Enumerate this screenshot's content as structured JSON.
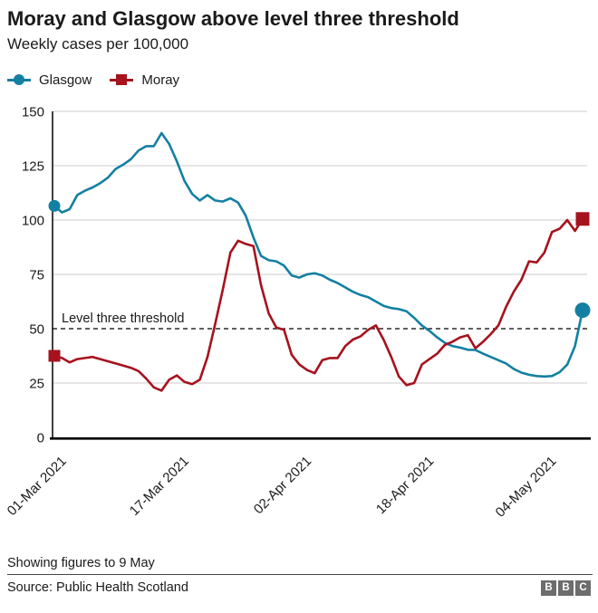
{
  "header": {
    "title": "Moray and Glasgow above level three threshold",
    "subtitle": "Weekly cases per 100,000"
  },
  "legend": {
    "items": [
      {
        "label": "Glasgow",
        "marker": "circle",
        "color": "#1380A1"
      },
      {
        "label": "Moray",
        "marker": "square",
        "color": "#A6121D"
      }
    ]
  },
  "chart_data": {
    "type": "line",
    "x_start_label": "01-Mar 2021",
    "x_end_note": "data shown to 9 May 2021, one point per day",
    "xticks": [
      {
        "index": 0,
        "label": "01-Mar 2021"
      },
      {
        "index": 16,
        "label": "17-Mar 2021"
      },
      {
        "index": 32,
        "label": "02-Apr 2021"
      },
      {
        "index": 48,
        "label": "18-Apr 2021"
      },
      {
        "index": 64,
        "label": "04-May 2021"
      }
    ],
    "yticks": [
      0,
      25,
      50,
      75,
      100,
      125,
      150
    ],
    "ylim": [
      0,
      150
    ],
    "grid": "horizontal",
    "legend_position": "top-left",
    "threshold": {
      "value": 50,
      "label": "Level three threshold"
    },
    "series": [
      {
        "name": "Glasgow",
        "color": "#1380A1",
        "marker": "circle",
        "values": [
          106.5,
          103.5,
          105,
          111.5,
          113.5,
          115,
          117,
          119.5,
          123.5,
          125.5,
          128,
          132,
          134,
          134,
          140,
          135,
          127,
          118,
          112,
          109,
          111.5,
          109,
          108.5,
          110,
          108,
          102,
          92,
          83.5,
          81.5,
          81,
          79,
          74.5,
          73.5,
          75,
          75.5,
          74.5,
          72.5,
          71,
          69,
          67,
          65.5,
          64.5,
          62.5,
          60.5,
          59.5,
          59,
          58,
          55,
          51.5,
          49,
          46,
          43.5,
          42,
          41.3,
          40.3,
          40.2,
          38.5,
          37,
          35.5,
          34,
          31.5,
          29.8,
          28.8,
          28.2,
          28,
          28.2,
          30,
          33.5,
          42,
          58.5
        ]
      },
      {
        "name": "Moray",
        "color": "#A6121D",
        "marker": "square",
        "values": [
          37.5,
          36.5,
          34.5,
          36,
          36.5,
          37,
          36,
          35,
          34,
          33,
          32,
          30.5,
          27,
          23,
          21.5,
          26.5,
          28.5,
          25.5,
          24.5,
          26.5,
          37,
          52,
          68,
          85,
          90.5,
          89,
          88,
          70,
          57,
          50.5,
          49.5,
          38,
          33.5,
          31,
          29.5,
          35.5,
          36.5,
          36.5,
          42,
          45,
          46.5,
          49.5,
          51.5,
          45,
          37,
          28,
          24,
          25,
          33.5,
          36,
          38.5,
          42.5,
          44,
          46,
          47,
          41,
          44,
          47.5,
          51.5,
          60,
          67,
          72.5,
          81,
          80.5,
          85,
          94.5,
          96,
          100,
          95,
          100.5
        ]
      }
    ]
  },
  "footer": {
    "note": "Showing figures to 9 May",
    "source": "Source: Public Health Scotland",
    "logo": [
      "B",
      "B",
      "C"
    ]
  },
  "colors": {
    "glasgow": "#1380A1",
    "moray": "#A6121D",
    "grid": "#CCCCCC",
    "axis": "#000000",
    "text": "#1A1A1A"
  }
}
